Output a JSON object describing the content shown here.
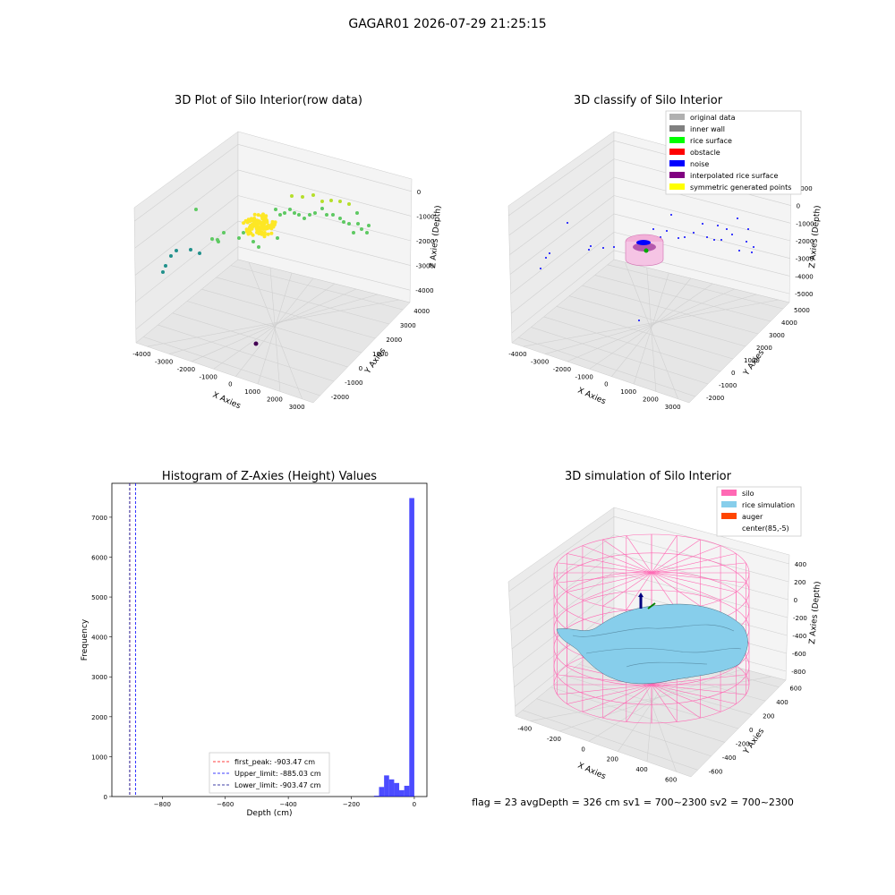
{
  "figure": {
    "suptitle": "GAGAR01 2026-07-29 21:25:15",
    "footer": "flag = 23   avgDepth = 326 cm  sv1 = 700~2300  sv2 = 700~2300"
  },
  "chart_data": [
    {
      "type": "scatter",
      "title": "3D Plot of Silo Interior(row data)",
      "xlabel": "X Axies",
      "ylabel": "Y Axies",
      "zlabel": "Z Axies (Depth)",
      "x_ticks": [
        "-4000",
        "-3000",
        "-2000",
        "-1000",
        "0",
        "1000",
        "2000",
        "3000"
      ],
      "y_ticks": [
        "-2000",
        "-1000",
        "0",
        "1000",
        "2000",
        "3000",
        "4000"
      ],
      "z_ticks": [
        "0",
        "-1000",
        "-2000",
        "-3000",
        "-4000"
      ],
      "grid": true,
      "colormap": [
        "#440154",
        "#3b528b",
        "#21918c",
        "#5ec962",
        "#b5de2b",
        "#fde725"
      ]
    },
    {
      "type": "scatter",
      "title": "3D classify of Silo Interior",
      "xlabel": "X Axies",
      "ylabel": "Y Axies",
      "zlabel": "Z Axies (Depth)",
      "x_ticks": [
        "-4000",
        "-3000",
        "-2000",
        "-1000",
        "0",
        "1000",
        "2000",
        "3000"
      ],
      "y_ticks": [
        "-2000",
        "-1000",
        "0",
        "1000",
        "2000",
        "3000",
        "4000",
        "5000"
      ],
      "z_ticks": [
        "1000",
        "0",
        "-1000",
        "-2000",
        "-3000",
        "-4000",
        "-5000"
      ],
      "legend_position": "top-right",
      "legend": [
        {
          "name": "original data",
          "color": "#b0b0b0"
        },
        {
          "name": "inner wall",
          "color": "#808080"
        },
        {
          "name": "rice surface",
          "color": "#00ff00"
        },
        {
          "name": "obstacle",
          "color": "#ff0000"
        },
        {
          "name": "noise",
          "color": "#0000ff"
        },
        {
          "name": "interpolated rice surface",
          "color": "#800080"
        },
        {
          "name": "symmetric generated points",
          "color": "#ffff00"
        }
      ]
    },
    {
      "type": "bar",
      "title": "Histogram of Z-Axies (Height) Values",
      "xlabel": "Depth (cm)",
      "ylabel": "Frequency",
      "xlim": [
        -960,
        40
      ],
      "ylim": [
        0,
        7850
      ],
      "x_ticks": [
        "−800",
        "−600",
        "−400",
        "−200",
        "0"
      ],
      "y_ticks": [
        "0",
        "1000",
        "2000",
        "3000",
        "4000",
        "5000",
        "6000",
        "7000"
      ],
      "bin_width": 16,
      "bins": [
        {
          "x": -120,
          "y": 20
        },
        {
          "x": -104,
          "y": 240
        },
        {
          "x": -88,
          "y": 530
        },
        {
          "x": -72,
          "y": 430
        },
        {
          "x": -56,
          "y": 340
        },
        {
          "x": -40,
          "y": 160
        },
        {
          "x": -24,
          "y": 270
        },
        {
          "x": -8,
          "y": 7480
        }
      ],
      "color": "#0000ff",
      "vlines": [
        {
          "name": "first_peak: -903.47 cm",
          "x": -903.47,
          "color": "#ff0000"
        },
        {
          "name": "Upper_limit: -885.03 cm",
          "x": -885.03,
          "color": "#0000ff"
        },
        {
          "name": "Lower_limit: -903.47 cm",
          "x": -903.47,
          "color": "#00008b"
        }
      ],
      "legend_position": "lower-center"
    },
    {
      "type": "area",
      "title": "3D simulation of Silo Interior",
      "xlabel": "X Axies",
      "ylabel": "Y Axies",
      "zlabel": "Z Axies (Depth)",
      "x_ticks": [
        "-400",
        "-200",
        "0",
        "200",
        "400",
        "600"
      ],
      "y_ticks": [
        "-600",
        "-400",
        "-200",
        "0",
        "200",
        "400",
        "600"
      ],
      "z_ticks": [
        "400",
        "200",
        "0",
        "-200",
        "-400",
        "-600",
        "-800"
      ],
      "legend_position": "top-right",
      "legend": [
        {
          "name": "silo",
          "color": "#ff69b4"
        },
        {
          "name": "rice simulation",
          "color": "#87ceeb"
        },
        {
          "name": "auger",
          "color": "#ff4500"
        },
        {
          "name": "center(85,-5)",
          "color": "#ffffff"
        }
      ]
    }
  ]
}
